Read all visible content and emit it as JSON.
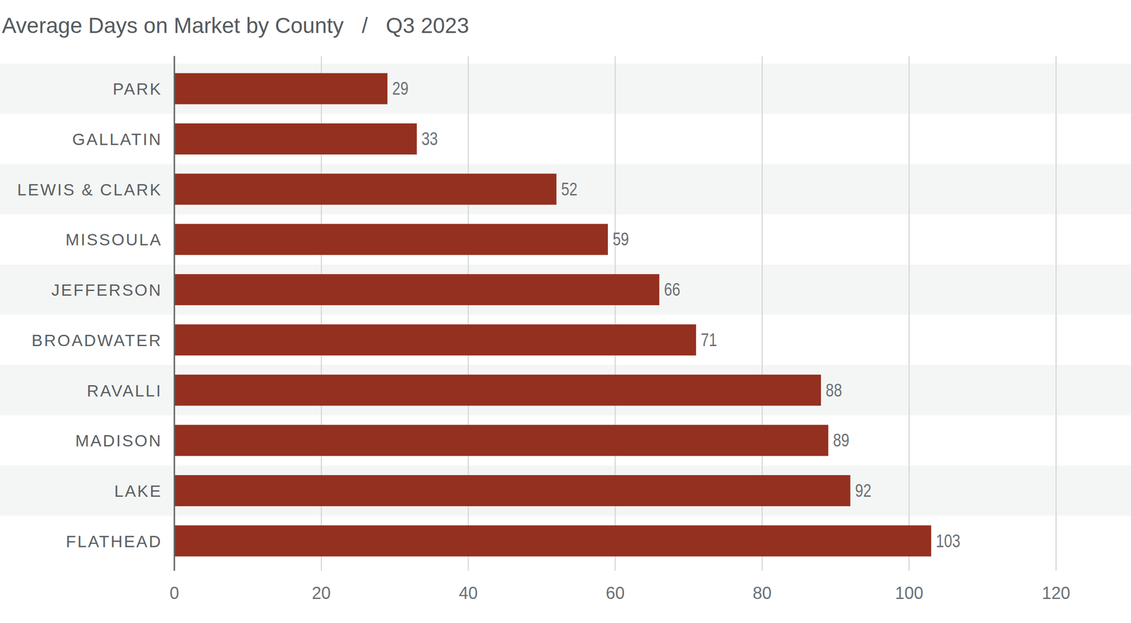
{
  "chart_data": {
    "type": "bar",
    "title": "Average Days on Market by County   /   Q3 2023",
    "orientation": "horizontal",
    "categories": [
      "PARK",
      "GALLATIN",
      "LEWIS & CLARK",
      "MISSOULA",
      "JEFFERSON",
      "BROADWATER",
      "RAVALLI",
      "MADISON",
      "LAKE",
      "FLATHEAD"
    ],
    "values": [
      29,
      33,
      52,
      59,
      66,
      71,
      88,
      89,
      92,
      103
    ],
    "color": "#943020",
    "xlim": [
      0,
      120
    ],
    "xticks": [
      0,
      20,
      40,
      60,
      80,
      100,
      120
    ],
    "grid": true,
    "data_labels": true
  }
}
